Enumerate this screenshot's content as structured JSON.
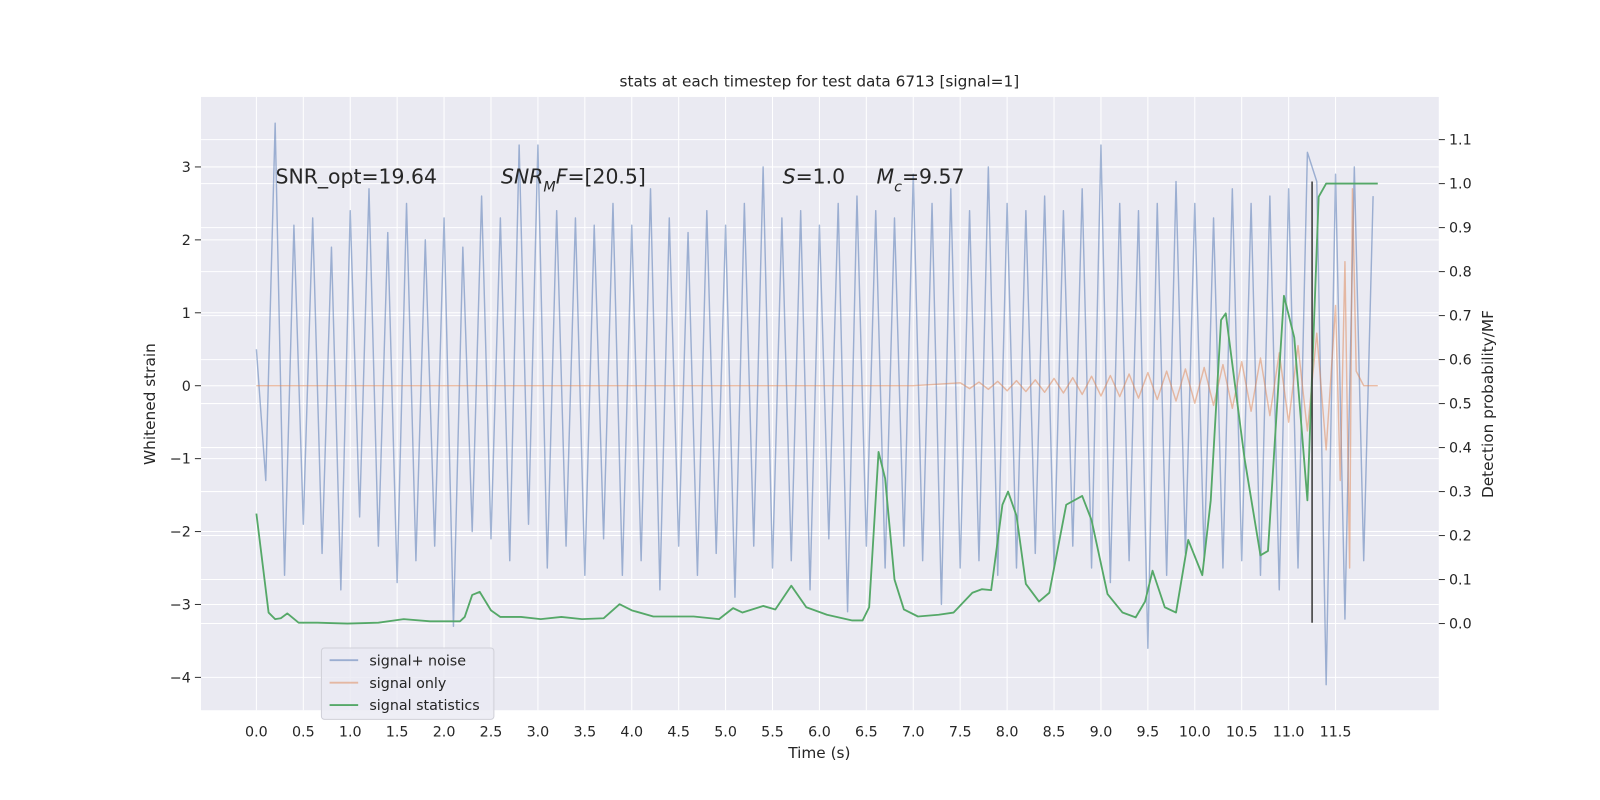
{
  "chart_data": {
    "type": "line",
    "title": "stats at each timestep for test data 6713 [signal=1]",
    "x_label": "Time (s)",
    "y_label": "Whitened strain",
    "y2_label": "Detection probability/MF",
    "background": "#eaeaf2",
    "grid": true,
    "legend": "lower left",
    "xlim": [
      -0.59,
      12.6
    ],
    "ylim": [
      -4.45,
      3.96
    ],
    "y2lim": [
      -0.197,
      1.197
    ],
    "xticks": [
      {
        "value": 0,
        "label": "0.0"
      },
      {
        "value": 0.5,
        "label": "0.5"
      },
      {
        "value": 1,
        "label": "1.0"
      },
      {
        "value": 1.5,
        "label": "1.5"
      },
      {
        "value": 2,
        "label": "2.0"
      },
      {
        "value": 2.5,
        "label": "2.5"
      },
      {
        "value": 3,
        "label": "3.0"
      },
      {
        "value": 3.5,
        "label": "3.5"
      },
      {
        "value": 4,
        "label": "4.0"
      },
      {
        "value": 4.5,
        "label": "4.5"
      },
      {
        "value": 5,
        "label": "5.0"
      },
      {
        "value": 5.5,
        "label": "5.5"
      },
      {
        "value": 6,
        "label": "6.0"
      },
      {
        "value": 6.5,
        "label": "6.5"
      },
      {
        "value": 7,
        "label": "7.0"
      },
      {
        "value": 7.5,
        "label": "7.5"
      },
      {
        "value": 8,
        "label": "8.0"
      },
      {
        "value": 8.5,
        "label": "8.5"
      },
      {
        "value": 9,
        "label": "9.0"
      },
      {
        "value": 9.5,
        "label": "9.5"
      },
      {
        "value": 10,
        "label": "10.0"
      },
      {
        "value": 10.5,
        "label": "10.5"
      },
      {
        "value": 11,
        "label": "11.0"
      },
      {
        "value": 11.5,
        "label": "11.5"
      }
    ],
    "yticks": [
      {
        "value": -4,
        "label": "−4"
      },
      {
        "value": -3,
        "label": "−3"
      },
      {
        "value": -2,
        "label": "−2"
      },
      {
        "value": -1,
        "label": "−1"
      },
      0,
      1,
      2,
      3
    ],
    "y2ticks": [
      {
        "value": 0,
        "label": "0.0"
      },
      {
        "value": 0.1,
        "label": "0.1"
      },
      {
        "value": 0.2,
        "label": "0.2"
      },
      {
        "value": 0.3,
        "label": "0.3"
      },
      {
        "value": 0.4,
        "label": "0.4"
      },
      {
        "value": 0.5,
        "label": "0.5"
      },
      {
        "value": 0.6,
        "label": "0.6"
      },
      {
        "value": 0.7,
        "label": "0.7"
      },
      {
        "value": 0.8,
        "label": "0.8"
      },
      {
        "value": 0.9,
        "label": "0.9"
      },
      {
        "value": 1,
        "label": "1.0"
      },
      {
        "value": 1.1,
        "label": "1.1"
      }
    ],
    "annotations": [
      [
        {
          "text": "SNR_opt=19.64",
          "italic": false,
          "sub": false
        }
      ],
      [
        {
          "text": "SNR",
          "italic": true,
          "sub": false
        },
        {
          "text": "M",
          "italic": true,
          "sub": true
        },
        {
          "text": "F",
          "italic": true,
          "sub": false
        },
        {
          "text": "=[20.5]",
          "italic": false,
          "sub": false
        }
      ],
      [
        {
          "text": "S",
          "italic": true,
          "sub": false
        },
        {
          "text": "=1.0",
          "italic": false,
          "sub": false
        }
      ],
      [
        {
          "text": "M",
          "italic": true,
          "sub": false
        },
        {
          "text": "c",
          "italic": true,
          "sub": true
        },
        {
          "text": "=9.57",
          "italic": false,
          "sub": false
        }
      ]
    ],
    "vline": {
      "x": 11.25,
      "ymin": -3.25,
      "ymax": 2.8,
      "color": "#3a3a3a"
    },
    "series": [
      {
        "name": "signal+ noise",
        "color": "#4c72b0",
        "opacity": 0.5,
        "axis": "y",
        "x": [
          0,
          0.1,
          0.2,
          0.3,
          0.4,
          0.5,
          0.6,
          0.7,
          0.8,
          0.9,
          1,
          1.1,
          1.2,
          1.3,
          1.4,
          1.5,
          1.6,
          1.7,
          1.8,
          1.9,
          2,
          2.1,
          2.2,
          2.3,
          2.4,
          2.5,
          2.6,
          2.7,
          2.8,
          2.9,
          3,
          3.1,
          3.2,
          3.3,
          3.4,
          3.5,
          3.6,
          3.7,
          3.8,
          3.9,
          4,
          4.1,
          4.2,
          4.3,
          4.4,
          4.5,
          4.6,
          4.7,
          4.8,
          4.9,
          5,
          5.1,
          5.2,
          5.3,
          5.4,
          5.5,
          5.6,
          5.7,
          5.8,
          5.9,
          6,
          6.1,
          6.2,
          6.3,
          6.4,
          6.5,
          6.6,
          6.7,
          6.8,
          6.9,
          7,
          7.1,
          7.2,
          7.3,
          7.4,
          7.5,
          7.6,
          7.7,
          7.8,
          7.9,
          8,
          8.1,
          8.2,
          8.3,
          8.4,
          8.5,
          8.6,
          8.7,
          8.8,
          8.9,
          9,
          9.1,
          9.2,
          9.3,
          9.4,
          9.5,
          9.6,
          9.7,
          9.8,
          9.9,
          10,
          10.1,
          10.2,
          10.3,
          10.4,
          10.5,
          10.6,
          10.7,
          10.8,
          10.9,
          11,
          11.1,
          11.2,
          11.3,
          11.4,
          11.5,
          11.6,
          11.7,
          11.8,
          11.9
        ],
        "values": [
          0.5,
          -1.3,
          3.6,
          -2.6,
          2.2,
          -1.9,
          2.3,
          -2.3,
          1.9,
          -2.8,
          2.4,
          -1.8,
          2.7,
          -2.2,
          2.1,
          -2.7,
          2.5,
          -2.4,
          2.0,
          -2.2,
          2.3,
          -3.3,
          1.9,
          -2.0,
          2.6,
          -2.1,
          2.3,
          -2.4,
          3.3,
          -1.9,
          3.3,
          -2.5,
          2.4,
          -2.2,
          2.3,
          -2.6,
          2.2,
          -2.1,
          2.5,
          -2.6,
          2.2,
          -2.4,
          2.7,
          -2.8,
          2.3,
          -2.2,
          2.1,
          -2.6,
          2.4,
          -2.3,
          2.2,
          -2.9,
          2.5,
          -2.2,
          3.0,
          -2.5,
          2.3,
          -2.4,
          2.4,
          -2.8,
          2.2,
          -2.1,
          2.5,
          -3.1,
          2.6,
          -2.2,
          2.4,
          -2.5,
          2.3,
          -2.2,
          2.9,
          -2.4,
          2.5,
          -3.0,
          2.7,
          -2.5,
          2.4,
          -2.4,
          3.0,
          -2.6,
          2.5,
          -2.5,
          2.4,
          -2.3,
          2.6,
          -2.5,
          2.4,
          -2.2,
          2.7,
          -2.5,
          3.3,
          -2.7,
          2.5,
          -2.4,
          2.4,
          -3.6,
          2.5,
          -2.6,
          2.8,
          -2.3,
          2.5,
          -2.4,
          2.3,
          -2.5,
          2.7,
          -2.4,
          2.5,
          -2.6,
          2.6,
          -2.8,
          2.7,
          -2.5,
          3.2,
          2.8,
          -4.1,
          2.9,
          -3.2,
          3.0,
          -2.4,
          2.6
        ]
      },
      {
        "name": "signal only",
        "color": "#dd8452",
        "opacity": 0.5,
        "axis": "y",
        "x": [
          0,
          7,
          7.5,
          7.6,
          7.7,
          7.8,
          7.9,
          8,
          8.1,
          8.2,
          8.3,
          8.4,
          8.5,
          8.6,
          8.7,
          8.8,
          8.9,
          9,
          9.1,
          9.2,
          9.3,
          9.4,
          9.5,
          9.6,
          9.7,
          9.8,
          9.9,
          10,
          10.1,
          10.2,
          10.3,
          10.4,
          10.5,
          10.6,
          10.7,
          10.8,
          10.9,
          11,
          11.1,
          11.2,
          11.3,
          11.4,
          11.5,
          11.55,
          11.6,
          11.65,
          11.68,
          11.72,
          11.8,
          11.95
        ],
        "values": [
          0,
          0,
          0.04,
          -0.04,
          0.05,
          -0.05,
          0.06,
          -0.07,
          0.07,
          -0.08,
          0.08,
          -0.09,
          0.1,
          -0.1,
          0.11,
          -0.12,
          0.13,
          -0.14,
          0.14,
          -0.15,
          0.16,
          -0.17,
          0.18,
          -0.19,
          0.2,
          -0.21,
          0.23,
          -0.24,
          0.25,
          -0.27,
          0.29,
          -0.31,
          0.33,
          -0.35,
          0.38,
          -0.41,
          0.45,
          -0.5,
          0.55,
          -0.62,
          0.72,
          -0.88,
          1.1,
          -1.3,
          1.7,
          -2.5,
          2.7,
          0.2,
          0,
          0
        ]
      },
      {
        "name": "signal statistics",
        "color": "#55a868",
        "opacity": 1,
        "axis": "y2",
        "x": [
          0,
          0.13,
          0.2,
          0.26,
          0.33,
          0.45,
          0.65,
          0.97,
          1.3,
          1.57,
          1.85,
          2.17,
          2.22,
          2.3,
          2.38,
          2.5,
          2.6,
          2.82,
          3.03,
          3.25,
          3.47,
          3.7,
          3.87,
          4,
          4.23,
          4.45,
          4.66,
          4.93,
          5.08,
          5.18,
          5.4,
          5.53,
          5.7,
          5.86,
          6.08,
          6.35,
          6.46,
          6.53,
          6.63,
          6.7,
          6.8,
          6.9,
          7.05,
          7.27,
          7.43,
          7.63,
          7.73,
          7.83,
          7.95,
          8.01,
          8.1,
          8.2,
          8.34,
          8.45,
          8.63,
          8.8,
          8.9,
          9.07,
          9.23,
          9.37,
          9.47,
          9.55,
          9.68,
          9.8,
          9.93,
          10.08,
          10.17,
          10.28,
          10.33,
          10.53,
          10.7,
          10.78,
          10.95,
          11.06,
          11.2,
          11.32,
          11.4,
          11.95
        ],
        "values": [
          0.25,
          0.025,
          0.01,
          0.012,
          0.023,
          0.002,
          0.002,
          0,
          0.002,
          0.01,
          0.005,
          0.005,
          0.015,
          0.065,
          0.072,
          0.03,
          0.015,
          0.015,
          0.01,
          0.015,
          0.01,
          0.012,
          0.044,
          0.03,
          0.016,
          0.016,
          0.016,
          0.01,
          0.035,
          0.025,
          0.04,
          0.032,
          0.086,
          0.037,
          0.02,
          0.007,
          0.007,
          0.037,
          0.39,
          0.33,
          0.1,
          0.032,
          0.016,
          0.02,
          0.025,
          0.07,
          0.078,
          0.076,
          0.27,
          0.3,
          0.245,
          0.09,
          0.05,
          0.07,
          0.27,
          0.29,
          0.235,
          0.067,
          0.025,
          0.014,
          0.05,
          0.12,
          0.037,
          0.025,
          0.19,
          0.11,
          0.28,
          0.69,
          0.705,
          0.375,
          0.155,
          0.165,
          0.745,
          0.65,
          0.28,
          0.97,
          1,
          1
        ]
      }
    ]
  }
}
